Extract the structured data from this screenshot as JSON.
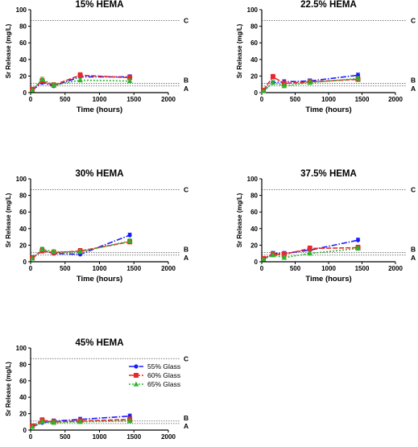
{
  "chart_data": [
    {
      "type": "line",
      "title": "15% HEMA",
      "xlabel": "Time (hours)",
      "ylabel": "Sr Release (mg/L)",
      "xlim": [
        0,
        2000
      ],
      "ylim": [
        0,
        100
      ],
      "xticks": [
        0,
        500,
        1000,
        1500,
        2000
      ],
      "yticks": [
        0,
        20,
        40,
        60,
        80,
        100
      ],
      "reference_lines": [
        {
          "label": "C",
          "value": 87
        },
        {
          "label": "B",
          "value": 11
        },
        {
          "label": "A",
          "value": 8
        }
      ],
      "series": [
        {
          "name": "55% Glass",
          "color": "#1a1aff",
          "x": [
            24,
            168,
            336,
            720,
            1440
          ],
          "y": [
            3,
            12,
            8,
            19,
            19
          ]
        },
        {
          "name": "60% Glass",
          "color": "#e8282a",
          "x": [
            24,
            168,
            336,
            720,
            1440
          ],
          "y": [
            4,
            14,
            9,
            21,
            18
          ]
        },
        {
          "name": "65% Glass",
          "color": "#2bb52b",
          "x": [
            24,
            168,
            336,
            720,
            1440
          ],
          "y": [
            3,
            16,
            9,
            15,
            14
          ]
        }
      ]
    },
    {
      "type": "line",
      "title": "22.5% HEMA",
      "xlabel": "Time (hours)",
      "ylabel": "Sr Release (mg/L)",
      "xlim": [
        0,
        2000
      ],
      "ylim": [
        0,
        100
      ],
      "xticks": [
        0,
        500,
        1000,
        1500,
        2000
      ],
      "yticks": [
        0,
        20,
        40,
        60,
        80,
        100
      ],
      "reference_lines": [
        {
          "label": "C",
          "value": 87
        },
        {
          "label": "B",
          "value": 11
        },
        {
          "label": "A",
          "value": 8
        }
      ],
      "series": [
        {
          "name": "55% Glass",
          "color": "#1a1aff",
          "x": [
            24,
            168,
            336,
            720,
            1440
          ],
          "y": [
            2,
            12,
            13,
            14,
            21
          ]
        },
        {
          "name": "60% Glass",
          "color": "#e8282a",
          "x": [
            24,
            168,
            336,
            720,
            1440
          ],
          "y": [
            3,
            19,
            11,
            13,
            16
          ]
        },
        {
          "name": "65% Glass",
          "color": "#2bb52b",
          "x": [
            24,
            168,
            336,
            720,
            1440
          ],
          "y": [
            2,
            12,
            8,
            12,
            17
          ]
        }
      ]
    },
    {
      "type": "line",
      "title": "30% HEMA",
      "xlabel": "Time (hours)",
      "ylabel": "Sr Release (mg/L)",
      "xlim": [
        0,
        2000
      ],
      "ylim": [
        0,
        100
      ],
      "xticks": [
        0,
        500,
        1000,
        1500,
        2000
      ],
      "yticks": [
        0,
        20,
        40,
        60,
        80,
        100
      ],
      "reference_lines": [
        {
          "label": "C",
          "value": 87
        },
        {
          "label": "B",
          "value": 11
        },
        {
          "label": "A",
          "value": 8
        }
      ],
      "series": [
        {
          "name": "55% Glass",
          "color": "#1a1aff",
          "x": [
            24,
            168,
            336,
            720,
            1440
          ],
          "y": [
            4,
            14,
            10,
            9,
            32
          ]
        },
        {
          "name": "60% Glass",
          "color": "#e8282a",
          "x": [
            24,
            168,
            336,
            720,
            1440
          ],
          "y": [
            5,
            13,
            11,
            13,
            24
          ]
        },
        {
          "name": "65% Glass",
          "color": "#2bb52b",
          "x": [
            24,
            168,
            336,
            720,
            1440
          ],
          "y": [
            4,
            15,
            12,
            12,
            25
          ]
        }
      ]
    },
    {
      "type": "line",
      "title": "37.5% HEMA",
      "xlabel": "Time (hours)",
      "ylabel": "Sr Release (mg/L)",
      "xlim": [
        0,
        2000
      ],
      "ylim": [
        0,
        100
      ],
      "xticks": [
        0,
        500,
        1000,
        1500,
        2000
      ],
      "yticks": [
        0,
        20,
        40,
        60,
        80,
        100
      ],
      "reference_lines": [
        {
          "label": "C",
          "value": 87
        },
        {
          "label": "B",
          "value": 11
        },
        {
          "label": "A",
          "value": 8
        }
      ],
      "series": [
        {
          "name": "55% Glass",
          "color": "#1a1aff",
          "x": [
            24,
            168,
            336,
            720,
            1440
          ],
          "y": [
            3,
            10,
            10,
            14,
            26
          ]
        },
        {
          "name": "60% Glass",
          "color": "#e8282a",
          "x": [
            24,
            168,
            336,
            720,
            1440
          ],
          "y": [
            4,
            9,
            9,
            16,
            17
          ]
        },
        {
          "name": "65% Glass",
          "color": "#2bb52b",
          "x": [
            24,
            168,
            336,
            720,
            1440
          ],
          "y": [
            3,
            8,
            5,
            10,
            16
          ]
        }
      ]
    },
    {
      "type": "line",
      "title": "45% HEMA",
      "xlabel": "Time (hours)",
      "ylabel": "Sr Release (mg/L)",
      "xlim": [
        0,
        2000
      ],
      "ylim": [
        0,
        100
      ],
      "xticks": [
        0,
        500,
        1000,
        1500,
        2000
      ],
      "yticks": [
        0,
        20,
        40,
        60,
        80,
        100
      ],
      "reference_lines": [
        {
          "label": "C",
          "value": 87
        },
        {
          "label": "B",
          "value": 11
        },
        {
          "label": "A",
          "value": 8
        }
      ],
      "legend": {
        "placement": "center-right",
        "entries": [
          "55% Glass",
          "60% Glass",
          "65% Glass"
        ]
      },
      "series": [
        {
          "name": "55% Glass",
          "color": "#1a1aff",
          "x": [
            24,
            168,
            336,
            720,
            1440
          ],
          "y": [
            4,
            9,
            11,
            13,
            17
          ]
        },
        {
          "name": "60% Glass",
          "color": "#e8282a",
          "x": [
            24,
            168,
            336,
            720,
            1440
          ],
          "y": [
            5,
            12,
            10,
            11,
            13
          ]
        },
        {
          "name": "65% Glass",
          "color": "#2bb52b",
          "x": [
            24,
            168,
            336,
            720,
            1440
          ],
          "y": [
            4,
            10,
            9,
            10,
            11
          ]
        }
      ]
    }
  ]
}
